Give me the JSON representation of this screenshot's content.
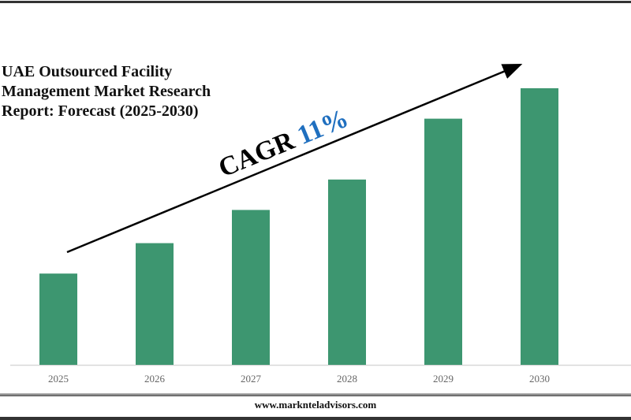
{
  "chart_data": {
    "type": "bar",
    "title": "UAE Outsourced Facility Management Market Research Report: Forecast (2025-2030)",
    "categories": [
      "2025",
      "2026",
      "2027",
      "2028",
      "2029",
      "2030"
    ],
    "values": [
      33,
      44,
      56,
      67,
      89,
      100
    ],
    "ylim": [
      0,
      100
    ],
    "xlabel": "",
    "ylabel": "",
    "grid": false,
    "bar_color": "#3d9670",
    "annotation": {
      "prefix": "CAGR",
      "value": "11%",
      "value_color": "#1f6fbf"
    }
  },
  "footer": {
    "website": "www.marknteladvisors.com"
  }
}
